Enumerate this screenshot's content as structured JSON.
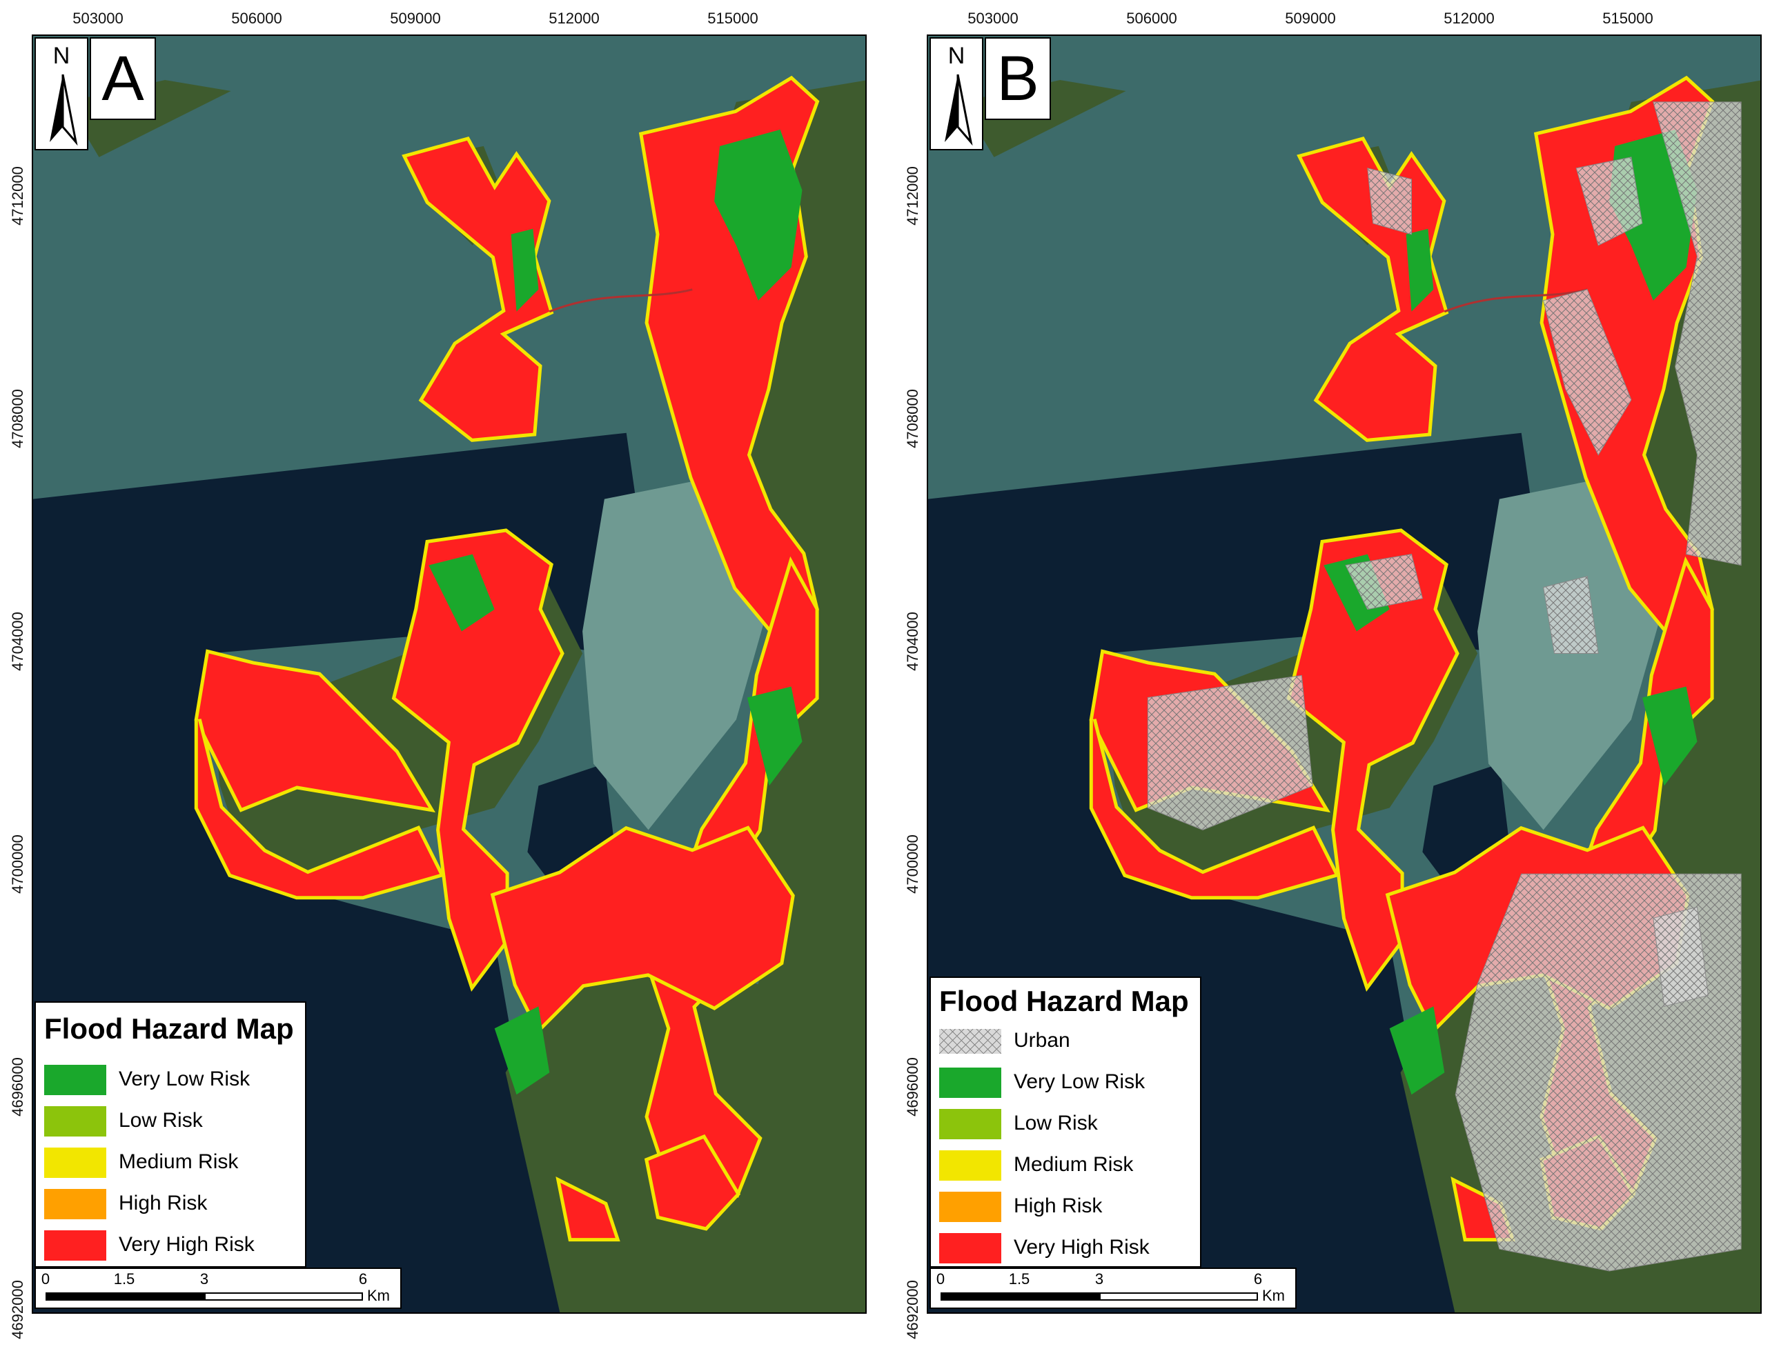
{
  "x_ticks": [
    "503000",
    "506000",
    "509000",
    "512000",
    "515000"
  ],
  "y_ticks": [
    "4712000",
    "4708000",
    "4704000",
    "4700000",
    "4696000",
    "4692000"
  ],
  "north_label": "N",
  "legend": {
    "title": "Flood Hazard Map",
    "urban": {
      "label": "Urban"
    },
    "classes": [
      {
        "label": "Very Low Risk",
        "color": "#1aa82c"
      },
      {
        "label": "Low Risk",
        "color": "#8cc40c"
      },
      {
        "label": "Medium Risk",
        "color": "#f2e600"
      },
      {
        "label": "High Risk",
        "color": "#ffa000"
      },
      {
        "label": "Very High Risk",
        "color": "#ff2020"
      }
    ]
  },
  "scale": {
    "ticks": [
      "0",
      "1.5",
      "3",
      "6"
    ],
    "unit": "Km"
  },
  "panels": [
    {
      "letter": "A",
      "shows_urban": false
    },
    {
      "letter": "B",
      "shows_urban": true
    }
  ],
  "colors": {
    "deep_sea": "#0c1f33",
    "shallow_sea": "#3d6b6a",
    "land": "#3e5b2e",
    "urban": "#d9d9d9"
  }
}
